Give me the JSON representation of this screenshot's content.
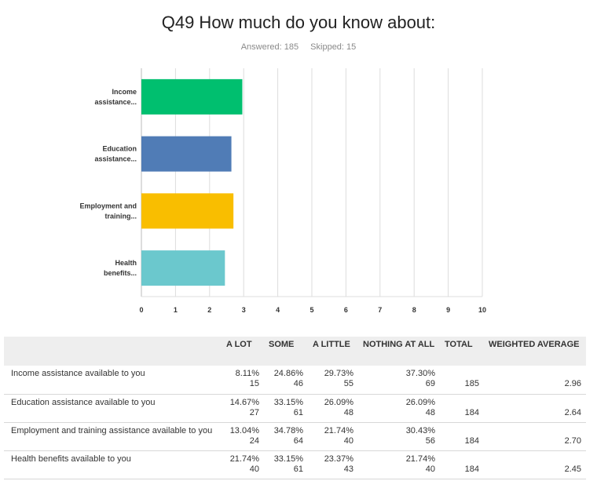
{
  "header": {
    "title": "Q49 How much do you know about:",
    "answered": "Answered: 185",
    "skipped": "Skipped: 15"
  },
  "colors": {
    "bars": [
      "#00bf6f",
      "#507cb6",
      "#f9be00",
      "#6bc8cd"
    ],
    "grid": "#dddddd",
    "table_header_bg": "#eeeeee"
  },
  "chart_data": {
    "type": "bar",
    "orientation": "horizontal",
    "categories": [
      "Income assistance...",
      "Education assistance...",
      "Employment and training...",
      "Health benefits..."
    ],
    "values": [
      2.96,
      2.64,
      2.7,
      2.45
    ],
    "xlim": [
      0,
      10
    ],
    "xticks": [
      "0",
      "1",
      "2",
      "3",
      "4",
      "5",
      "6",
      "7",
      "8",
      "9",
      "10"
    ],
    "grid": true
  },
  "table": {
    "headers": [
      "",
      "A LOT",
      "SOME",
      "A LITTLE",
      "NOTHING AT ALL",
      "TOTAL",
      "WEIGHTED AVERAGE"
    ],
    "rows": [
      {
        "label": "Income assistance available to you",
        "cells": [
          {
            "pct": "8.11%",
            "count": "15"
          },
          {
            "pct": "24.86%",
            "count": "46"
          },
          {
            "pct": "29.73%",
            "count": "55"
          },
          {
            "pct": "37.30%",
            "count": "69"
          }
        ],
        "total": "185",
        "weighted_average": "2.96"
      },
      {
        "label": "Education assistance available to you",
        "cells": [
          {
            "pct": "14.67%",
            "count": "27"
          },
          {
            "pct": "33.15%",
            "count": "61"
          },
          {
            "pct": "26.09%",
            "count": "48"
          },
          {
            "pct": "26.09%",
            "count": "48"
          }
        ],
        "total": "184",
        "weighted_average": "2.64"
      },
      {
        "label": "Employment and training assistance available to you",
        "cells": [
          {
            "pct": "13.04%",
            "count": "24"
          },
          {
            "pct": "34.78%",
            "count": "64"
          },
          {
            "pct": "21.74%",
            "count": "40"
          },
          {
            "pct": "30.43%",
            "count": "56"
          }
        ],
        "total": "184",
        "weighted_average": "2.70"
      },
      {
        "label": "Health benefits available to you",
        "cells": [
          {
            "pct": "21.74%",
            "count": "40"
          },
          {
            "pct": "33.15%",
            "count": "61"
          },
          {
            "pct": "23.37%",
            "count": "43"
          },
          {
            "pct": "21.74%",
            "count": "40"
          }
        ],
        "total": "184",
        "weighted_average": "2.45"
      }
    ]
  }
}
